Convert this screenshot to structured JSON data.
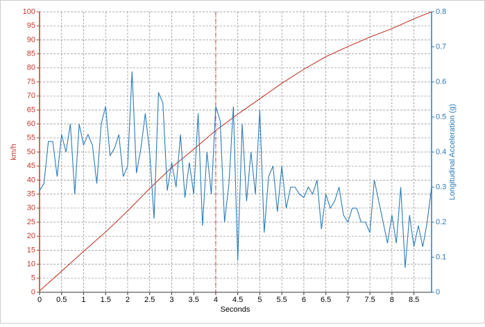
{
  "chart_data": {
    "type": "line",
    "x_label": "Seconds",
    "y_label": "km/h",
    "y2_label": "Longitudinal Acceleration (g)",
    "xlim": [
      0,
      8.9
    ],
    "xticks": [
      0,
      0.5,
      1,
      1.5,
      2,
      2.5,
      3,
      3.5,
      4,
      4.5,
      5,
      5.5,
      6,
      6.5,
      7,
      7.5,
      8,
      8.5
    ],
    "ylim": [
      0,
      100
    ],
    "yticks": [
      0,
      5,
      10,
      15,
      20,
      25,
      30,
      35,
      40,
      45,
      50,
      55,
      60,
      65,
      70,
      75,
      80,
      85,
      90,
      95,
      100
    ],
    "y2lim": [
      0,
      0.8
    ],
    "y2ticks": [
      0,
      0.1,
      0.2,
      0.3,
      0.4,
      0.5,
      0.6,
      0.7,
      0.8
    ],
    "grid": true,
    "cursor_x": 4,
    "cursor_color": "#c0392b",
    "y_color": "#c0392b",
    "y2_color": "#2a7ab8",
    "series": [
      {
        "color": "#c0392b",
        "x": [
          0,
          0.5,
          1,
          1.5,
          2,
          2.5,
          3,
          3.5,
          4,
          4.5,
          5,
          5.5,
          6,
          6.5,
          7,
          7.5,
          8,
          8.5,
          8.9
        ],
        "values": [
          0.5,
          7.5,
          14.6,
          21.5,
          29,
          37,
          44.5,
          51,
          57.7,
          63.5,
          69,
          74.5,
          79.5,
          84,
          87.6,
          91,
          94,
          97.5,
          100
        ]
      },
      {
        "color": "#2a7ab8",
        "axis": "y2",
        "x": [
          0,
          0.1,
          0.2,
          0.3,
          0.4,
          0.5,
          0.6,
          0.7,
          0.8,
          0.9,
          1,
          1.1,
          1.2,
          1.3,
          1.4,
          1.5,
          1.6,
          1.7,
          1.8,
          1.9,
          2,
          2.1,
          2.2,
          2.3,
          2.4,
          2.5,
          2.6,
          2.7,
          2.8,
          2.9,
          3,
          3.1,
          3.2,
          3.3,
          3.4,
          3.5,
          3.6,
          3.7,
          3.8,
          3.9,
          4,
          4.1,
          4.2,
          4.3,
          4.4,
          4.5,
          4.6,
          4.7,
          4.8,
          4.9,
          5,
          5.1,
          5.2,
          5.3,
          5.4,
          5.5,
          5.6,
          5.7,
          5.8,
          5.9,
          6,
          6.1,
          6.2,
          6.3,
          6.4,
          6.5,
          6.6,
          6.7,
          6.8,
          6.9,
          7,
          7.1,
          7.2,
          7.3,
          7.4,
          7.5,
          7.6,
          7.7,
          7.8,
          7.9,
          8,
          8.1,
          8.2,
          8.3,
          8.4,
          8.5,
          8.6,
          8.7,
          8.8,
          8.9
        ],
        "values": [
          0.29,
          0.31,
          0.43,
          0.43,
          0.33,
          0.45,
          0.4,
          0.48,
          0.28,
          0.48,
          0.42,
          0.45,
          0.42,
          0.31,
          0.48,
          0.53,
          0.39,
          0.41,
          0.45,
          0.33,
          0.36,
          0.63,
          0.34,
          0.41,
          0.51,
          0.4,
          0.21,
          0.57,
          0.54,
          0.29,
          0.37,
          0.3,
          0.45,
          0.27,
          0.37,
          0.28,
          0.51,
          0.19,
          0.4,
          0.28,
          0.53,
          0.49,
          0.2,
          0.31,
          0.53,
          0.09,
          0.48,
          0.26,
          0.4,
          0.28,
          0.52,
          0.17,
          0.33,
          0.36,
          0.23,
          0.36,
          0.24,
          0.3,
          0.3,
          0.28,
          0.27,
          0.3,
          0.28,
          0.32,
          0.18,
          0.28,
          0.24,
          0.26,
          0.3,
          0.22,
          0.2,
          0.24,
          0.24,
          0.2,
          0.2,
          0.17,
          0.32,
          0.26,
          0.2,
          0.14,
          0.22,
          0.14,
          0.3,
          0.07,
          0.22,
          0.13,
          0.19,
          0.13,
          0.2,
          0.3
        ]
      }
    ]
  }
}
